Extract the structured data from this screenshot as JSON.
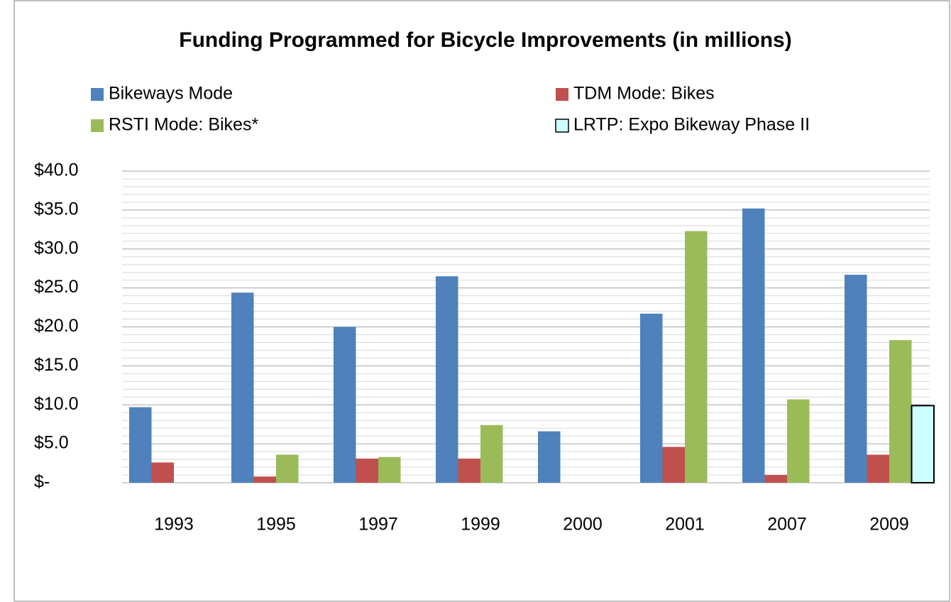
{
  "chart_data": {
    "type": "bar",
    "title": "Funding Programmed for Bicycle Improvements (in millions)",
    "categories": [
      "1993",
      "1995",
      "1997",
      "1999",
      "2000",
      "2001",
      "2007",
      "2009"
    ],
    "series": [
      {
        "name": "Bikeways Mode",
        "color": "#4f81bd",
        "values": [
          9.7,
          24.4,
          20.0,
          26.5,
          6.6,
          21.7,
          35.2,
          26.7
        ]
      },
      {
        "name": "TDM Mode: Bikes",
        "color": "#c0504d",
        "values": [
          2.6,
          0.8,
          3.1,
          3.1,
          null,
          4.6,
          1.0,
          3.6
        ]
      },
      {
        "name": "RSTI Mode: Bikes*",
        "color": "#9bbb59",
        "values": [
          null,
          3.6,
          3.3,
          7.4,
          null,
          32.3,
          10.7,
          18.3
        ]
      },
      {
        "name": "LRTP: Expo Bikeway Phase II",
        "color": "#ccffff",
        "edge_color": "#000000",
        "values": [
          null,
          null,
          null,
          null,
          null,
          null,
          null,
          9.9
        ]
      }
    ],
    "ylim": [
      0,
      40
    ],
    "yticks": [
      {
        "value": 0,
        "label": "$-"
      },
      {
        "value": 5,
        "label": "$5.0"
      },
      {
        "value": 10,
        "label": "$10.0"
      },
      {
        "value": 15,
        "label": "$15.0"
      },
      {
        "value": 20,
        "label": "$20.0"
      },
      {
        "value": 25,
        "label": "$25.0"
      },
      {
        "value": 30,
        "label": "$30.0"
      },
      {
        "value": 35,
        "label": "$35.0"
      },
      {
        "value": 40,
        "label": "$40.0"
      }
    ],
    "yminorticks": [
      1,
      2,
      3,
      4,
      6,
      7,
      8,
      9,
      11,
      12,
      13,
      14,
      16,
      17,
      18,
      19,
      21,
      22,
      23,
      24,
      26,
      27,
      28,
      29,
      31,
      32,
      33,
      34,
      36,
      37,
      38,
      39
    ],
    "grid": true,
    "legend": "top"
  }
}
